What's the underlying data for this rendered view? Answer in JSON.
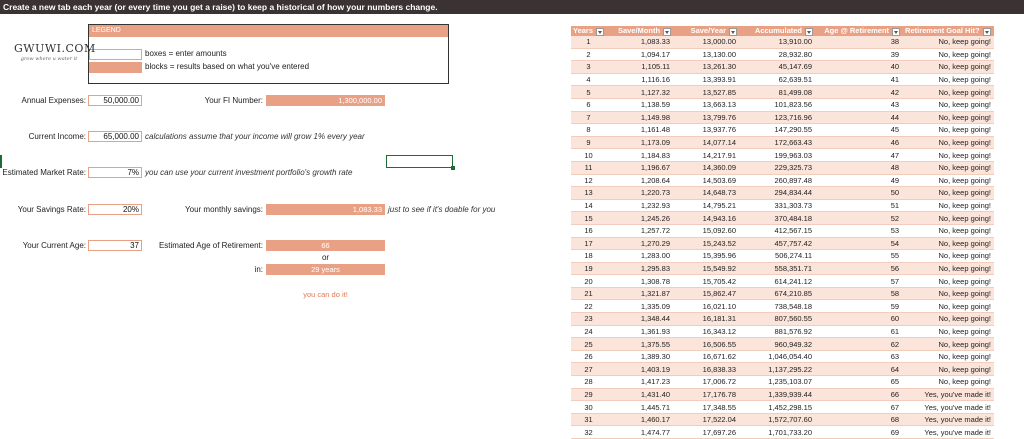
{
  "banner": "Create a new tab each year (or every time you get a raise) to keep a historical of how your numbers change.",
  "logo": {
    "main": "GWUWI.COM",
    "sub": "grow where u water it"
  },
  "legend": {
    "title": "LEGEND",
    "boxes_text": "boxes = enter amounts",
    "blocks_text": "blocks = results based on what you've entered"
  },
  "inputs": {
    "annual_expenses": {
      "label": "Annual Expenses:",
      "value": "50,000.00"
    },
    "current_income": {
      "label": "Current Income:",
      "value": "65,000.00",
      "note": "calculations assume that your income will grow 1% every year"
    },
    "market_rate": {
      "label": "Estimated Market Rate:",
      "value": "7%",
      "note": "you can use your current investment portfolio's growth rate"
    },
    "savings_rate": {
      "label": "Your Savings Rate:",
      "value": "20%"
    },
    "current_age": {
      "label": "Your Current Age:",
      "value": "37"
    }
  },
  "results": {
    "fi_number": {
      "label": "Your FI Number:",
      "value": "1,300,000.00"
    },
    "monthly_savings": {
      "label": "Your monthly savings:",
      "value": "1,083.33",
      "note": "just to see if it's doable for you"
    },
    "retirement_age": {
      "label": "Estimated Age of Retirement:",
      "value": "66"
    },
    "or_text": "or",
    "in_label": "in:",
    "years": "29 years",
    "encouragement": "you can do it!"
  },
  "table": {
    "headers": [
      "Years",
      "Save/Month",
      "Save/Year",
      "Accumulated",
      "Age @ Retirement",
      "Retirement Goal Hit?"
    ],
    "rows": [
      [
        "1",
        "1,083.33",
        "13,000.00",
        "13,910.00",
        "38",
        "No, keep going!"
      ],
      [
        "2",
        "1,094.17",
        "13,130.00",
        "28,932.80",
        "39",
        "No, keep going!"
      ],
      [
        "3",
        "1,105.11",
        "13,261.30",
        "45,147.69",
        "40",
        "No, keep going!"
      ],
      [
        "4",
        "1,116.16",
        "13,393.91",
        "62,639.51",
        "41",
        "No, keep going!"
      ],
      [
        "5",
        "1,127.32",
        "13,527.85",
        "81,499.08",
        "42",
        "No, keep going!"
      ],
      [
        "6",
        "1,138.59",
        "13,663.13",
        "101,823.56",
        "43",
        "No, keep going!"
      ],
      [
        "7",
        "1,149.98",
        "13,799.76",
        "123,716.96",
        "44",
        "No, keep going!"
      ],
      [
        "8",
        "1,161.48",
        "13,937.76",
        "147,290.55",
        "45",
        "No, keep going!"
      ],
      [
        "9",
        "1,173.09",
        "14,077.14",
        "172,663.43",
        "46",
        "No, keep going!"
      ],
      [
        "10",
        "1,184.83",
        "14,217.91",
        "199,963.03",
        "47",
        "No, keep going!"
      ],
      [
        "11",
        "1,196.67",
        "14,360.09",
        "229,325.73",
        "48",
        "No, keep going!"
      ],
      [
        "12",
        "1,208.64",
        "14,503.69",
        "260,897.48",
        "49",
        "No, keep going!"
      ],
      [
        "13",
        "1,220.73",
        "14,648.73",
        "294,834.44",
        "50",
        "No, keep going!"
      ],
      [
        "14",
        "1,232.93",
        "14,795.21",
        "331,303.73",
        "51",
        "No, keep going!"
      ],
      [
        "15",
        "1,245.26",
        "14,943.16",
        "370,484.18",
        "52",
        "No, keep going!"
      ],
      [
        "16",
        "1,257.72",
        "15,092.60",
        "412,567.15",
        "53",
        "No, keep going!"
      ],
      [
        "17",
        "1,270.29",
        "15,243.52",
        "457,757.42",
        "54",
        "No, keep going!"
      ],
      [
        "18",
        "1,283.00",
        "15,395.96",
        "506,274.11",
        "55",
        "No, keep going!"
      ],
      [
        "19",
        "1,295.83",
        "15,549.92",
        "558,351.71",
        "56",
        "No, keep going!"
      ],
      [
        "20",
        "1,308.78",
        "15,705.42",
        "614,241.12",
        "57",
        "No, keep going!"
      ],
      [
        "21",
        "1,321.87",
        "15,862.47",
        "674,210.85",
        "58",
        "No, keep going!"
      ],
      [
        "22",
        "1,335.09",
        "16,021.10",
        "738,548.18",
        "59",
        "No, keep going!"
      ],
      [
        "23",
        "1,348.44",
        "16,181.31",
        "807,560.55",
        "60",
        "No, keep going!"
      ],
      [
        "24",
        "1,361.93",
        "16,343.12",
        "881,576.92",
        "61",
        "No, keep going!"
      ],
      [
        "25",
        "1,375.55",
        "16,506.55",
        "960,949.32",
        "62",
        "No, keep going!"
      ],
      [
        "26",
        "1,389.30",
        "16,671.62",
        "1,046,054.40",
        "63",
        "No, keep going!"
      ],
      [
        "27",
        "1,403.19",
        "16,838.33",
        "1,137,295.22",
        "64",
        "No, keep going!"
      ],
      [
        "28",
        "1,417.23",
        "17,006.72",
        "1,235,103.07",
        "65",
        "No, keep going!"
      ],
      [
        "29",
        "1,431.40",
        "17,176.78",
        "1,339,939.44",
        "66",
        "Yes, you've made it!"
      ],
      [
        "30",
        "1,445.71",
        "17,348.55",
        "1,452,298.15",
        "67",
        "Yes, you've made it!"
      ],
      [
        "31",
        "1,460.17",
        "17,522.04",
        "1,572,707.60",
        "68",
        "Yes, you've made it!"
      ],
      [
        "32",
        "1,474.77",
        "17,697.26",
        "1,701,733.20",
        "69",
        "Yes, you've made it!"
      ]
    ]
  },
  "colors": {
    "accent": "#e9a186",
    "banner": "#3a3331",
    "row_tint": "#fbe4da",
    "selection": "#1e6b3a"
  }
}
